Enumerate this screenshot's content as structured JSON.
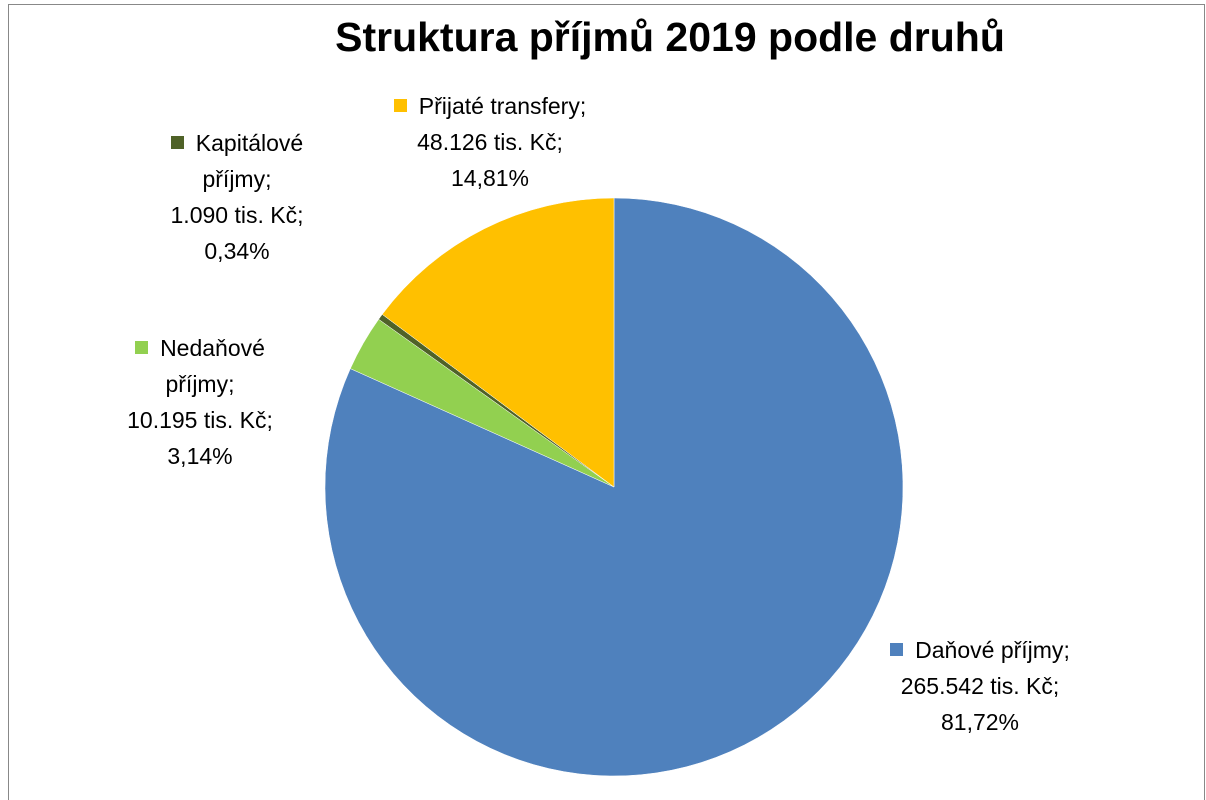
{
  "chart_data": {
    "type": "pie",
    "title": "Struktura příjmů 2019 podle druhů",
    "categories": [
      "Daňové příjmy",
      "Nedaňové příjmy",
      "Kapitálové příjmy",
      "Přijaté transfery"
    ],
    "values": [
      265542,
      10195,
      1090,
      48126
    ],
    "value_labels": [
      "265.542 tis. Kč",
      "10.195 tis. Kč",
      "1.090 tis. Kč",
      "48.126 tis. Kč"
    ],
    "percent_labels": [
      "81,72%",
      "3,14%",
      "0,34%",
      "14,81%"
    ],
    "label_separator": ";",
    "colors": [
      "#4f81bd",
      "#92d050",
      "#4f6228",
      "#ffc000"
    ]
  }
}
